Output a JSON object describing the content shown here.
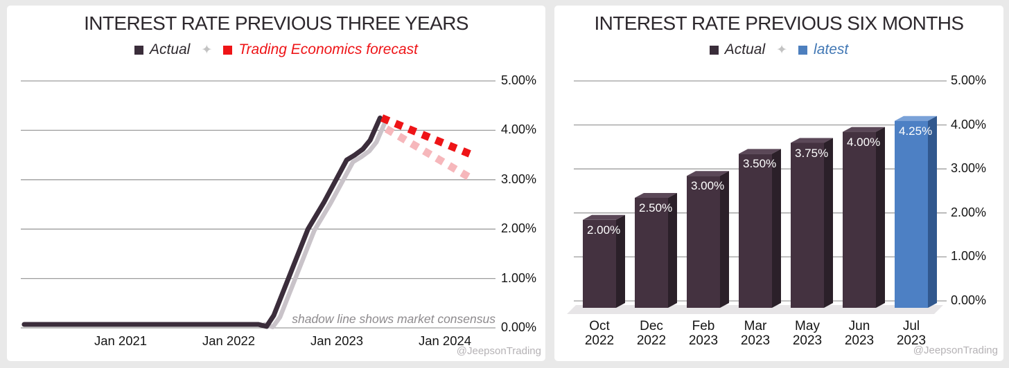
{
  "page": {
    "background": "#e9e9e9",
    "panel_background": "#ffffff",
    "gridline_color": "#9c9c9c",
    "watermark": "@JeepsonTrading"
  },
  "chart_data": [
    {
      "type": "line",
      "title": "INTEREST RATE PREVIOUS THREE YEARS",
      "legend_separator": "✦",
      "legend": [
        {
          "label": "Actual",
          "color": "#3a2d3a",
          "text_color": "#2d282d"
        },
        {
          "label": "Trading Economics forecast",
          "color": "#ee1417",
          "text_color": "#ee1417"
        }
      ],
      "note": "shadow line shows market consensus",
      "watermark": "@JeepsonTrading",
      "ylim": [
        0,
        5
      ],
      "grid": true,
      "y_ticks": [
        {
          "label": "5.00%",
          "value": 5
        },
        {
          "label": "4.00%",
          "value": 4
        },
        {
          "label": "3.00%",
          "value": 3
        },
        {
          "label": "2.00%",
          "value": 2
        },
        {
          "label": "1.00%",
          "value": 1
        },
        {
          "label": "0.00%",
          "value": 0
        }
      ],
      "x_ticks": [
        {
          "label": "Jan 2021",
          "t": 0
        },
        {
          "label": "Jan 2022",
          "t": 12
        },
        {
          "label": "Jan 2023",
          "t": 24
        },
        {
          "label": "Jan 2024",
          "t": 36
        }
      ],
      "x_unit": "months since Jan 2021",
      "series": [
        {
          "name": "market consensus shadow",
          "style": "solid",
          "color": "#c9c3c9",
          "width": 6.5,
          "points": [
            [
              16.0,
              0.07
            ],
            [
              16.9,
              0.02
            ],
            [
              17.7,
              0.22
            ],
            [
              21.5,
              1.97
            ],
            [
              23.3,
              2.52
            ],
            [
              25.8,
              3.36
            ],
            [
              26.7,
              3.46
            ],
            [
              27.6,
              3.58
            ],
            [
              28.4,
              3.76
            ],
            [
              29.4,
              4.18
            ]
          ]
        },
        {
          "name": "Actual",
          "style": "solid",
          "color": "#3b2d3b",
          "width": 7,
          "points": [
            [
              -10.7,
              0.07
            ],
            [
              15.3,
              0.07
            ],
            [
              16.2,
              0.03
            ],
            [
              17.0,
              0.25
            ],
            [
              20.8,
              2.0
            ],
            [
              22.6,
              2.55
            ],
            [
              25.1,
              3.4
            ],
            [
              26.0,
              3.5
            ],
            [
              26.9,
              3.62
            ],
            [
              27.7,
              3.8
            ],
            [
              28.8,
              4.25
            ]
          ]
        },
        {
          "name": "market consensus forecast",
          "style": "dashed",
          "color": "#f6b7bb",
          "width": 11,
          "points": [
            [
              29.5,
              4.03
            ],
            [
              38.7,
              3.05
            ]
          ]
        },
        {
          "name": "Trading Economics forecast",
          "style": "dashed",
          "color": "#ee1417",
          "width": 11,
          "points": [
            [
              29.0,
              4.25
            ],
            [
              38.8,
              3.52
            ]
          ]
        }
      ]
    },
    {
      "type": "bar",
      "variant": "3d",
      "title": "INTEREST RATE PREVIOUS SIX MONTHS",
      "legend_separator": "✦",
      "legend": [
        {
          "label": "Actual",
          "color": "#3a2d3a",
          "text_color": "#2d282d"
        },
        {
          "label": "latest",
          "color": "#4d7fbe",
          "text_color": "#4177b4"
        }
      ],
      "watermark": "@JeepsonTrading",
      "ylim": [
        0,
        5
      ],
      "grid": true,
      "y_ticks": [
        {
          "label": "5.00%",
          "value": 5
        },
        {
          "label": "4.00%",
          "value": 4
        },
        {
          "label": "3.00%",
          "value": 3
        },
        {
          "label": "2.00%",
          "value": 2
        },
        {
          "label": "1.00%",
          "value": 1
        },
        {
          "label": "0.00%",
          "value": 0
        }
      ],
      "categories": [
        [
          "Oct",
          "2022"
        ],
        [
          "Dec",
          "2022"
        ],
        [
          "Feb",
          "2023"
        ],
        [
          "Mar",
          "2023"
        ],
        [
          "May",
          "2023"
        ],
        [
          "Jun",
          "2023"
        ],
        [
          "Jul",
          "2023"
        ]
      ],
      "values": [
        2.0,
        2.5,
        3.0,
        3.5,
        3.75,
        4.0,
        4.25
      ],
      "value_labels": [
        "2.00%",
        "2.50%",
        "3.00%",
        "3.50%",
        "3.75%",
        "4.00%",
        "4.25%"
      ],
      "latest_index": 6,
      "floor_color": "#e7e5e7",
      "bar_colors": {
        "actual": {
          "front": "#443240",
          "top": "#5b4858",
          "side": "#2b2029",
          "label": "#ffffff"
        },
        "latest": {
          "front": "#4d80c4",
          "top": "#7aa2d8",
          "side": "#31588e",
          "label": "#ffffff"
        }
      }
    }
  ]
}
